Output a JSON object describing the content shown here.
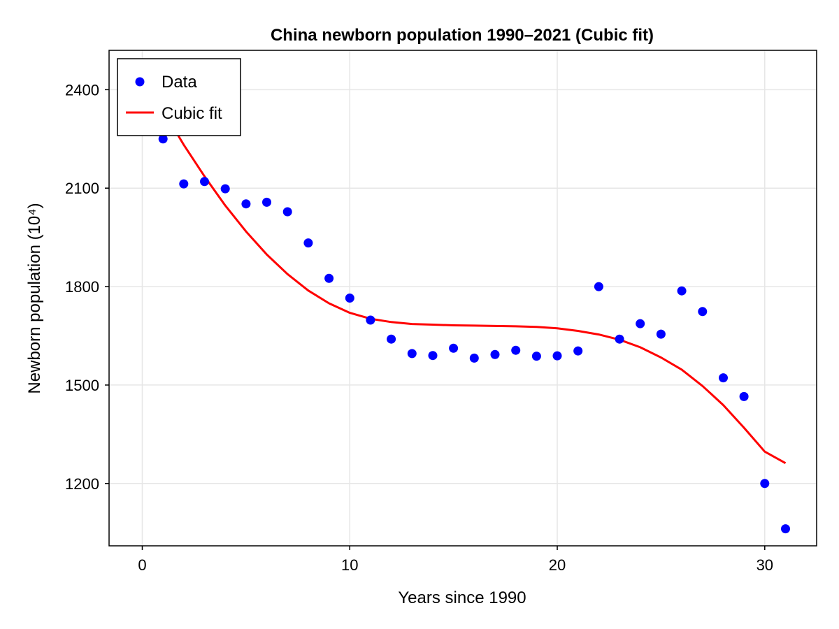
{
  "chart_data": {
    "type": "scatter",
    "title": "China newborn population 1990–2021 (Cubic fit)",
    "xlabel": "Years since 1990",
    "ylabel": "Newborn population (10⁴)",
    "xlim": [
      -1.6,
      32.5
    ],
    "ylim": [
      1010,
      2520
    ],
    "xticks": [
      0,
      10,
      20,
      30
    ],
    "yticks": [
      1200,
      1500,
      1800,
      2100,
      2400
    ],
    "grid": true,
    "legend_position": "top-left",
    "series": [
      {
        "name": "Data",
        "kind": "scatter",
        "color": "#0000ff",
        "x": [
          1,
          2,
          3,
          4,
          5,
          6,
          7,
          8,
          9,
          10,
          11,
          12,
          13,
          14,
          15,
          16,
          17,
          18,
          19,
          20,
          21,
          22,
          23,
          24,
          25,
          26,
          27,
          28,
          29,
          30,
          31
        ],
        "y": [
          2250,
          2113,
          2120,
          2098,
          2052,
          2057,
          2028,
          1933,
          1825,
          1765,
          1698,
          1640,
          1596,
          1590,
          1612,
          1582,
          1593,
          1606,
          1588,
          1589,
          1604,
          1800,
          1640,
          1687,
          1655,
          1787,
          1724,
          1522,
          1465,
          1200,
          1062
        ]
      },
      {
        "name": "Cubic fit",
        "kind": "line",
        "color": "#ff0000",
        "x": [
          1.5,
          2,
          3,
          4,
          5,
          6,
          7,
          8,
          9,
          10,
          11,
          12,
          13,
          14,
          15,
          16,
          17,
          18,
          19,
          20,
          21,
          22,
          23,
          24,
          25,
          26,
          27,
          28,
          29,
          30,
          31
        ],
        "y": [
          2285,
          2232,
          2136,
          2047,
          1968,
          1898,
          1838,
          1788,
          1749,
          1720,
          1702,
          1692,
          1686,
          1684,
          1682,
          1681,
          1680,
          1679,
          1677,
          1673,
          1665,
          1654,
          1638,
          1615,
          1584,
          1547,
          1497,
          1439,
          1370,
          1297,
          1262
        ]
      }
    ]
  }
}
